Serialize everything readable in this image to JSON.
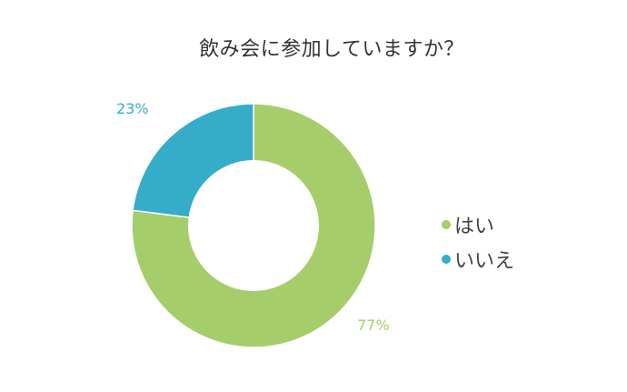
{
  "title": "飲み会に参加していますか？",
  "chart_data": {
    "type": "pie",
    "variant": "donut",
    "title": "飲み会に参加していますか？",
    "categories": [
      "はい",
      "いいえ"
    ],
    "values": [
      77,
      23
    ],
    "unit": "%",
    "colors": [
      "#A5CE6A",
      "#35ADC9"
    ],
    "data_labels": [
      "77%",
      "23%"
    ],
    "legend_position": "right",
    "start_angle": "12 o'clock, clockwise"
  },
  "labels": {
    "yes_pct": "77%",
    "no_pct": "23%"
  },
  "legend": [
    {
      "label": "はい",
      "color": "#A5CE6A"
    },
    {
      "label": "いいえ",
      "color": "#35ADC9"
    }
  ]
}
